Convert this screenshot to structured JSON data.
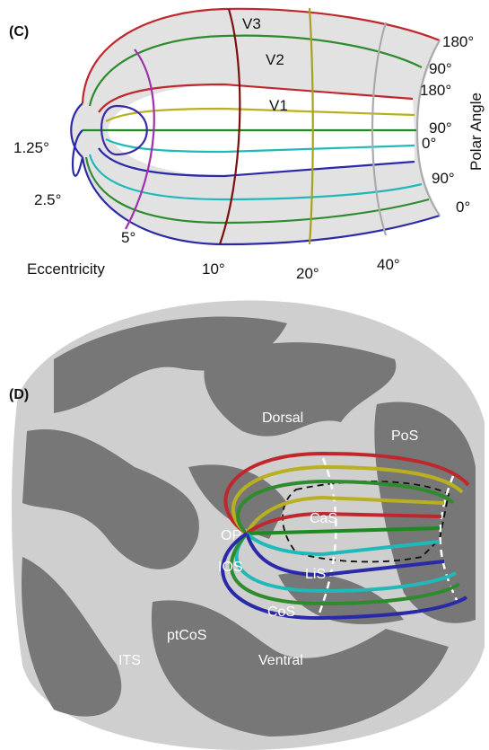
{
  "panel_c": {
    "label": "(C)",
    "area_labels": [
      "V3",
      "V2",
      "V1"
    ],
    "polar_angle_labels": [
      "180°",
      "90°",
      "180°",
      "90°",
      "0°",
      "90°",
      "0°"
    ],
    "polar_angle_title": "Polar Angle",
    "eccentricity_labels": [
      "1.25°",
      "2.5°",
      "5°",
      "10°",
      "20°",
      "40°"
    ],
    "eccentricity_title": "Eccentricity"
  },
  "panel_d": {
    "label": "(D)",
    "region_labels": [
      "Dorsal",
      "PoS",
      "CaS",
      "OP",
      "IOS",
      "LiS",
      "CoS",
      "ptCoS",
      "ITS",
      "Ventral"
    ]
  }
}
